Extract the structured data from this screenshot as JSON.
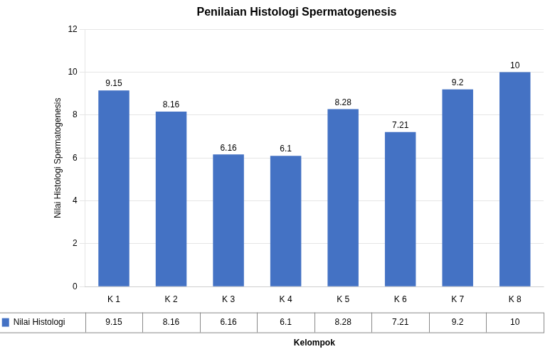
{
  "chart_data": {
    "type": "bar",
    "title": "Penilaian Histologi Spermatogenesis",
    "xlabel": "Kelompok",
    "ylabel": "Nilai Histologi Spermatogenesis",
    "categories": [
      "K 1",
      "K 2",
      "K 3",
      "K 4",
      "K 5",
      "K 6",
      "K 7",
      "K 8"
    ],
    "series": [
      {
        "name": "Nilai Histologi",
        "color": "#4472C4",
        "values": [
          9.15,
          8.16,
          6.16,
          6.1,
          8.28,
          7.21,
          9.2,
          10
        ]
      }
    ],
    "ylim": [
      0,
      12
    ],
    "yticks": [
      0,
      2,
      4,
      6,
      8,
      10,
      12
    ],
    "grid": true,
    "data_labels": true
  }
}
